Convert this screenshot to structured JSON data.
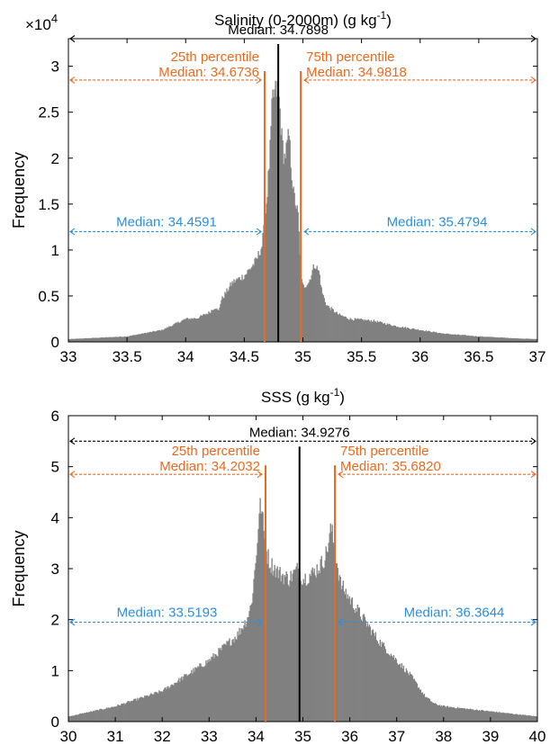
{
  "chart_data": [
    {
      "type": "bar",
      "title": "Salinity (0-2000m) (g kg",
      "title_sup": "-1",
      "title_end": ")",
      "xlabel": "",
      "ylabel": "Frequency",
      "exponent_label": "×10",
      "exponent_power": "4",
      "xlim": [
        33,
        37
      ],
      "ylim": [
        0,
        33000
      ],
      "xticks": [
        33,
        33.5,
        34,
        34.5,
        35,
        35.5,
        36,
        36.5,
        37
      ],
      "xtick_labels": [
        "33",
        "33.5",
        "34",
        "34.5",
        "35",
        "35.5",
        "36",
        "36.5",
        "37"
      ],
      "yticks": [
        0,
        5000,
        10000,
        15000,
        20000,
        25000,
        30000
      ],
      "ytick_labels": [
        "0",
        "0.5",
        "1",
        "1.5",
        "2",
        "2.5",
        "3"
      ],
      "bar_color": "#808080",
      "histogram_profile": {
        "x": [
          33,
          33.5,
          33.8,
          34.0,
          34.1,
          34.2,
          34.25,
          34.28,
          34.3,
          34.4,
          34.5,
          34.6,
          34.65,
          34.67,
          34.7,
          34.72,
          34.74,
          34.76,
          34.78,
          34.8,
          34.82,
          34.84,
          34.86,
          34.88,
          34.9,
          34.92,
          34.94,
          34.96,
          34.98,
          35.0,
          35.05,
          35.1,
          35.12,
          35.14,
          35.16,
          35.2,
          35.3,
          35.4,
          35.6,
          35.7,
          35.8,
          36.0,
          36.2,
          36.5,
          36.8,
          37.0
        ],
        "y": [
          300,
          600,
          1300,
          2500,
          2600,
          3200,
          3800,
          3300,
          4500,
          6500,
          7200,
          8800,
          10500,
          12500,
          17000,
          21000,
          26500,
          27000,
          27500,
          26000,
          22000,
          20000,
          21000,
          22500,
          19000,
          16000,
          15000,
          13500,
          7000,
          6000,
          6500,
          8500,
          8000,
          7500,
          5500,
          4000,
          3000,
          2500,
          2300,
          2000,
          1700,
          1300,
          900,
          600,
          400,
          300
        ]
      },
      "median": {
        "x": 34.7898,
        "label": "Median: 34.7898"
      },
      "p25": {
        "x": 34.6736,
        "title": "25th percentile",
        "label": "Median: 34.6736"
      },
      "p75": {
        "x": 34.9818,
        "title": "75th percentile",
        "label": "Median: 34.9818"
      },
      "lower_median": {
        "label": "Median: 34.4591"
      },
      "upper_median": {
        "label": "Median: 35.4794"
      },
      "annotation_levels": {
        "median_arrow": 33000,
        "quartile_arrow": 28500,
        "half_arrow": 12000
      },
      "colors": {
        "median": "#000000",
        "quartile": "#ea6a1f",
        "half": "#2a8fdd"
      }
    },
    {
      "type": "bar",
      "title": "SSS (g kg",
      "title_sup": "-1",
      "title_end": ")",
      "xlabel": "",
      "ylabel": "Frequency",
      "xlim": [
        30,
        40
      ],
      "ylim": [
        0,
        6
      ],
      "xticks": [
        30,
        31,
        32,
        33,
        34,
        35,
        36,
        37,
        38,
        39,
        40
      ],
      "xtick_labels": [
        "30",
        "31",
        "32",
        "33",
        "34",
        "35",
        "36",
        "37",
        "38",
        "39",
        "40"
      ],
      "yticks": [
        0,
        1,
        2,
        3,
        4,
        5,
        6
      ],
      "ytick_labels": [
        "0",
        "1",
        "2",
        "3",
        "4",
        "5",
        "6"
      ],
      "bar_color": "#808080",
      "histogram_profile": {
        "x": [
          30,
          30.5,
          31,
          31.5,
          32,
          32.5,
          33,
          33.3,
          33.6,
          33.8,
          33.9,
          34.0,
          34.05,
          34.1,
          34.2,
          34.3,
          34.5,
          34.7,
          34.9,
          35.0,
          35.2,
          35.4,
          35.5,
          35.6,
          35.8,
          36.0,
          36.3,
          36.6,
          37.0,
          37.3,
          37.6,
          37.8,
          38.0,
          38.5,
          39.0,
          39.5,
          40.0
        ],
        "y": [
          0.1,
          0.2,
          0.3,
          0.45,
          0.6,
          0.9,
          1.2,
          1.45,
          1.7,
          2.0,
          2.3,
          3.2,
          3.9,
          4.3,
          3.4,
          3.1,
          2.9,
          2.8,
          3.0,
          2.8,
          2.9,
          3.1,
          3.3,
          3.8,
          2.7,
          2.4,
          2.0,
          1.6,
          1.2,
          0.9,
          0.5,
          0.35,
          0.3,
          0.25,
          0.2,
          0.15,
          0.1
        ]
      },
      "median": {
        "x": 34.9276,
        "label": "Median: 34.9276"
      },
      "p25": {
        "x": 34.2032,
        "title": "25th percentile",
        "label": "Median: 34.2032"
      },
      "p75": {
        "x": 35.682,
        "title": "75th percentile",
        "label": "Median: 35.6820"
      },
      "lower_median": {
        "label": "Median: 33.5193"
      },
      "upper_median": {
        "label": "Median: 36.3644"
      },
      "annotation_levels": {
        "median_arrow": 5.5,
        "quartile_arrow": 4.85,
        "half_arrow": 1.95
      },
      "colors": {
        "median": "#000000",
        "quartile": "#ea6a1f",
        "half": "#2a8fdd"
      }
    }
  ]
}
